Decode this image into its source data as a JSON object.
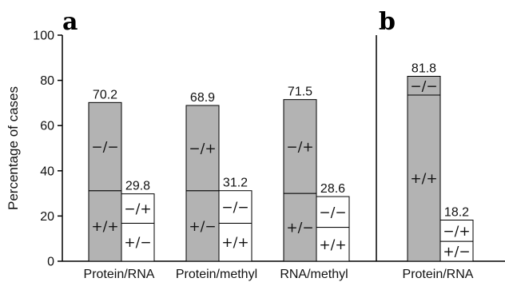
{
  "chart_data": {
    "type": "bar",
    "stacked": true,
    "ylabel": "Percentage of cases",
    "ylim": [
      0,
      100
    ],
    "yticks": [
      "0",
      "20",
      "40",
      "60",
      "80",
      "100"
    ],
    "grid": false,
    "panels": [
      {
        "label": "a",
        "groups": [
          {
            "category": "Protein/RNA",
            "bars": [
              {
                "total": 70.2,
                "total_label": "70.2",
                "color": "#b3b3b3",
                "segments": [
                  {
                    "label": "+/+",
                    "value": 31.2
                  },
                  {
                    "label": "−/−",
                    "value": 39.0
                  }
                ]
              },
              {
                "total": 29.8,
                "total_label": "29.8",
                "color": "#ffffff",
                "segments": [
                  {
                    "label": "+/−",
                    "value": 16.8
                  },
                  {
                    "label": "−/+",
                    "value": 13.0
                  }
                ]
              }
            ]
          },
          {
            "category": "Protein/methyl",
            "bars": [
              {
                "total": 68.9,
                "total_label": "68.9",
                "color": "#b3b3b3",
                "segments": [
                  {
                    "label": "+/−",
                    "value": 31.2
                  },
                  {
                    "label": "−/+",
                    "value": 37.7
                  }
                ]
              },
              {
                "total": 31.2,
                "total_label": "31.2",
                "color": "#ffffff",
                "segments": [
                  {
                    "label": "+/+",
                    "value": 16.8
                  },
                  {
                    "label": "−/−",
                    "value": 14.4
                  }
                ]
              }
            ]
          },
          {
            "category": "RNA/methyl",
            "bars": [
              {
                "total": 71.5,
                "total_label": "71.5",
                "color": "#b3b3b3",
                "segments": [
                  {
                    "label": "+/−",
                    "value": 30.0
                  },
                  {
                    "label": "−/+",
                    "value": 41.5
                  }
                ]
              },
              {
                "total": 28.6,
                "total_label": "28.6",
                "color": "#ffffff",
                "segments": [
                  {
                    "label": "+/+",
                    "value": 15.0
                  },
                  {
                    "label": "−/−",
                    "value": 13.6
                  }
                ]
              }
            ]
          }
        ]
      },
      {
        "label": "b",
        "groups": [
          {
            "category": "Protein/RNA",
            "bars": [
              {
                "total": 81.8,
                "total_label": "81.8",
                "color": "#b3b3b3",
                "segments": [
                  {
                    "label": "+/+",
                    "value": 73.5
                  },
                  {
                    "label": "−/−",
                    "value": 8.3
                  }
                ]
              },
              {
                "total": 18.2,
                "total_label": "18.2",
                "color": "#ffffff",
                "segments": [
                  {
                    "label": "+/−",
                    "value": 8.8
                  },
                  {
                    "label": "−/+",
                    "value": 9.4
                  }
                ]
              }
            ]
          }
        ]
      }
    ]
  }
}
